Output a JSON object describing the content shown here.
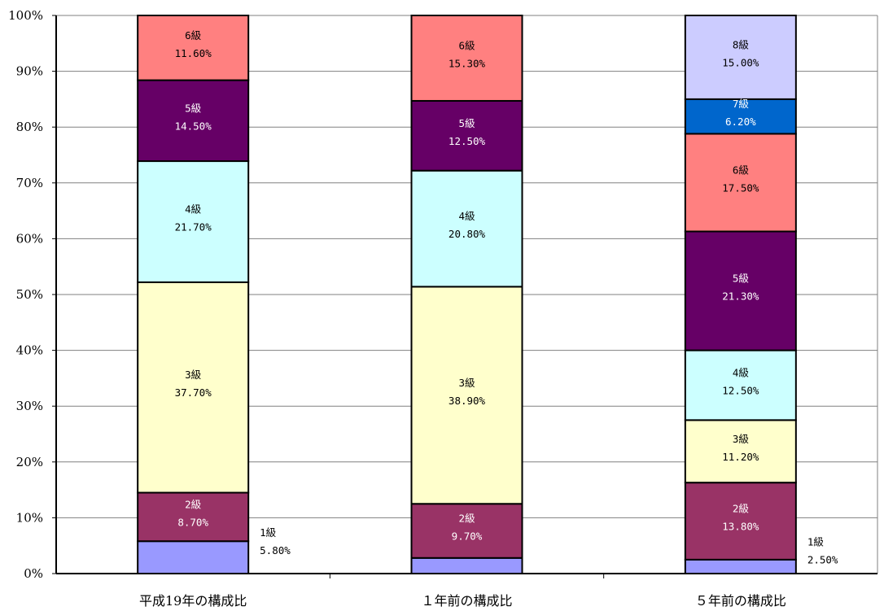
{
  "chart_data": {
    "type": "bar",
    "stacked": true,
    "percent_stacked": true,
    "ylim": [
      0,
      100
    ],
    "y_ticks": [
      "0%",
      "10%",
      "20%",
      "30%",
      "40%",
      "50%",
      "60%",
      "70%",
      "80%",
      "90%",
      "100%"
    ],
    "categories": [
      "平成19年の構成比",
      "１年前の構成比",
      "５年前の構成比"
    ],
    "series": [
      {
        "name": "1級",
        "color": "#9999ff",
        "text_color": "#000000",
        "values": [
          5.8,
          2.8,
          2.5
        ],
        "labels": [
          "1級\n5.80%",
          "",
          "1級\n2.50%"
        ],
        "label_outside": true
      },
      {
        "name": "2級",
        "color": "#993366",
        "text_color": "#ffffff",
        "values": [
          8.7,
          9.7,
          13.8
        ],
        "labels": [
          "2級\n8.70%",
          "2級\n9.70%",
          "2級\n13.80%"
        ]
      },
      {
        "name": "3級",
        "color": "#ffffcc",
        "text_color": "#000000",
        "values": [
          37.7,
          38.9,
          11.2
        ],
        "labels": [
          "3級\n37.70%",
          "3級\n38.90%",
          "3級\n11.20%"
        ]
      },
      {
        "name": "4級",
        "color": "#ccffff",
        "text_color": "#000000",
        "values": [
          21.7,
          20.8,
          12.5
        ],
        "labels": [
          "4級\n21.70%",
          "4級\n20.80%",
          "4級\n12.50%"
        ]
      },
      {
        "name": "5級",
        "color": "#660066",
        "text_color": "#ffffff",
        "values": [
          14.5,
          12.5,
          21.3
        ],
        "labels": [
          "5級\n14.50%",
          "5級\n12.50%",
          "5級\n21.30%"
        ]
      },
      {
        "name": "6級",
        "color": "#ff8080",
        "text_color": "#000000",
        "values": [
          11.6,
          15.3,
          17.5
        ],
        "labels": [
          "6級\n11.60%",
          "6級\n15.30%",
          "6級\n17.50%"
        ]
      },
      {
        "name": "7級",
        "color": "#0066cc",
        "text_color": "#ffffff",
        "values": [
          0,
          0,
          6.2
        ],
        "labels": [
          "",
          "",
          "7級\n6.20%"
        ]
      },
      {
        "name": "8級",
        "color": "#ccccff",
        "text_color": "#000000",
        "values": [
          0,
          0,
          15.0
        ],
        "labels": [
          "",
          "",
          "8級\n15.00%"
        ]
      }
    ],
    "grid": true,
    "gridline_color": "#808080"
  }
}
